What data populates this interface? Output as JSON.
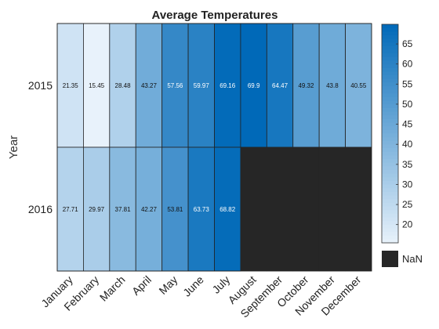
{
  "chart_data": {
    "type": "heatmap",
    "title": "Average Temperatures",
    "xlabel": "",
    "ylabel": "Year",
    "x_categories": [
      "January",
      "February",
      "March",
      "April",
      "May",
      "June",
      "July",
      "August",
      "September",
      "October",
      "November",
      "December"
    ],
    "y_categories": [
      "2015",
      "2016"
    ],
    "values": [
      [
        21.35,
        15.45,
        28.48,
        43.27,
        57.56,
        59.97,
        69.16,
        69.9,
        64.47,
        49.32,
        43.8,
        40.55
      ],
      [
        27.71,
        29.97,
        37.81,
        42.27,
        53.81,
        63.73,
        68.82,
        null,
        null,
        null,
        null,
        null
      ]
    ],
    "colorbar": {
      "ticks": [
        20,
        25,
        30,
        35,
        40,
        45,
        50,
        55,
        60,
        65
      ],
      "range": [
        15.45,
        69.9
      ],
      "low_color": "#e8f2fb",
      "high_color": "#0069b8"
    },
    "missing_label": "NaN",
    "missing_color": "#262626",
    "grid": true
  }
}
